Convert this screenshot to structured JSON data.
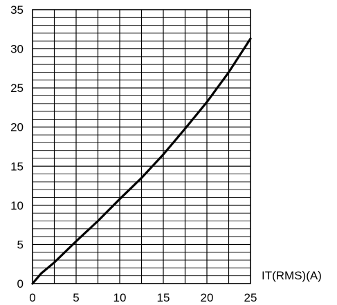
{
  "chart_data": {
    "type": "line",
    "title": "",
    "xlabel": "IT(RMS)(A)",
    "ylabel": "",
    "xlim": [
      0,
      25
    ],
    "ylim": [
      0,
      35
    ],
    "x_ticks": [
      "0",
      "5",
      "10",
      "15",
      "20",
      "25"
    ],
    "y_ticks": [
      "0",
      "5",
      "10",
      "15",
      "20",
      "25",
      "30",
      "35"
    ],
    "grid": true,
    "x_grid_step": 2.5,
    "y_grid_step": 1,
    "legend": "none",
    "series": [
      {
        "color": "#000000",
        "x": [
          0,
          1,
          2.5,
          5,
          7.5,
          10,
          12.5,
          15,
          17.5,
          20,
          22.5,
          25
        ],
        "y": [
          0,
          1.3,
          2.7,
          5.4,
          8.0,
          10.8,
          13.5,
          16.5,
          19.8,
          23.2,
          27.0,
          31.3
        ]
      }
    ]
  }
}
